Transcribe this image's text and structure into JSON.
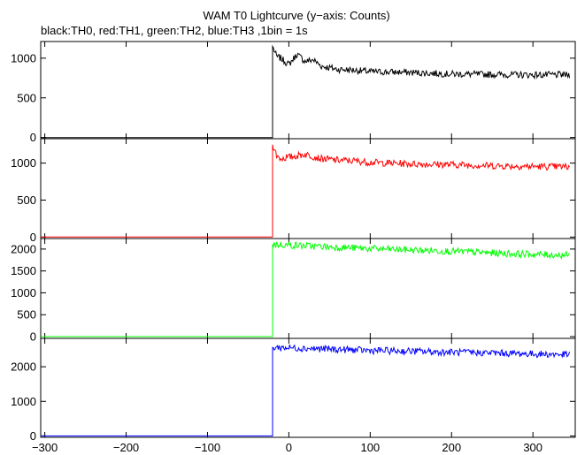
{
  "chart_data": {
    "type": "line",
    "title": "WAM T0 Lightcurve (y−axis: Counts)",
    "subtitle": "black:TH0, red:TH1, green:TH2, blue:TH3 ,1bin = 1s",
    "xlim": [
      -305,
      352
    ],
    "x_ticks": [
      -300,
      -200,
      -100,
      0,
      100,
      200,
      300
    ],
    "x_tick_labels": [
      "−300",
      "−200",
      "−100",
      "0",
      "100",
      "200",
      "300"
    ],
    "trigger_x": -20,
    "grid": false,
    "panels": [
      {
        "name": "TH0",
        "color": "#000000",
        "ylim": [
          -15,
          1210
        ],
        "y_ticks": [
          0,
          500,
          1000
        ],
        "y_tick_labels": [
          "0",
          "500",
          "1000"
        ],
        "points": [
          [
            -305,
            0
          ],
          [
            -21,
            0
          ],
          [
            -20,
            1150
          ],
          [
            -15,
            1020
          ],
          [
            -10,
            1000
          ],
          [
            -5,
            960
          ],
          [
            0,
            920
          ],
          [
            10,
            1050
          ],
          [
            20,
            960
          ],
          [
            30,
            980
          ],
          [
            40,
            900
          ],
          [
            60,
            860
          ],
          [
            80,
            850
          ],
          [
            100,
            830
          ],
          [
            150,
            820
          ],
          [
            200,
            800
          ],
          [
            250,
            795
          ],
          [
            300,
            790
          ],
          [
            345,
            790
          ]
        ]
      },
      {
        "name": "TH1",
        "color": "#ff0000",
        "ylim": [
          -20,
          1330
        ],
        "y_ticks": [
          0,
          500,
          1000
        ],
        "y_tick_labels": [
          "0",
          "500",
          "1000"
        ],
        "points": [
          [
            -305,
            0
          ],
          [
            -21,
            0
          ],
          [
            -20,
            1250
          ],
          [
            -15,
            1100
          ],
          [
            -10,
            1060
          ],
          [
            0,
            1080
          ],
          [
            10,
            1100
          ],
          [
            20,
            1120
          ],
          [
            30,
            1090
          ],
          [
            40,
            1060
          ],
          [
            60,
            1040
          ],
          [
            80,
            1030
          ],
          [
            100,
            1010
          ],
          [
            150,
            990
          ],
          [
            200,
            980
          ],
          [
            250,
            965
          ],
          [
            300,
            955
          ],
          [
            345,
            950
          ]
        ]
      },
      {
        "name": "TH2",
        "color": "#00ff00",
        "ylim": [
          -40,
          2240
        ],
        "y_ticks": [
          0,
          500,
          1000,
          1500,
          2000
        ],
        "y_tick_labels": [
          "0",
          "500",
          "1000",
          "1500",
          "2000"
        ],
        "points": [
          [
            -305,
            0
          ],
          [
            -21,
            0
          ],
          [
            -20,
            2110
          ],
          [
            0,
            2090
          ],
          [
            25,
            2070
          ],
          [
            50,
            2050
          ],
          [
            100,
            2010
          ],
          [
            150,
            1980
          ],
          [
            200,
            1950
          ],
          [
            250,
            1910
          ],
          [
            300,
            1880
          ],
          [
            345,
            1860
          ]
        ]
      },
      {
        "name": "TH3",
        "color": "#0000ff",
        "ylim": [
          -40,
          2820
        ],
        "y_ticks": [
          0,
          1000,
          2000
        ],
        "y_tick_labels": [
          "0",
          "1000",
          "2000"
        ],
        "points": [
          [
            -305,
            0
          ],
          [
            -21,
            0
          ],
          [
            -20,
            2560
          ],
          [
            0,
            2550
          ],
          [
            25,
            2530
          ],
          [
            50,
            2510
          ],
          [
            100,
            2470
          ],
          [
            150,
            2450
          ],
          [
            200,
            2420
          ],
          [
            250,
            2400
          ],
          [
            300,
            2370
          ],
          [
            345,
            2350
          ]
        ]
      }
    ]
  }
}
